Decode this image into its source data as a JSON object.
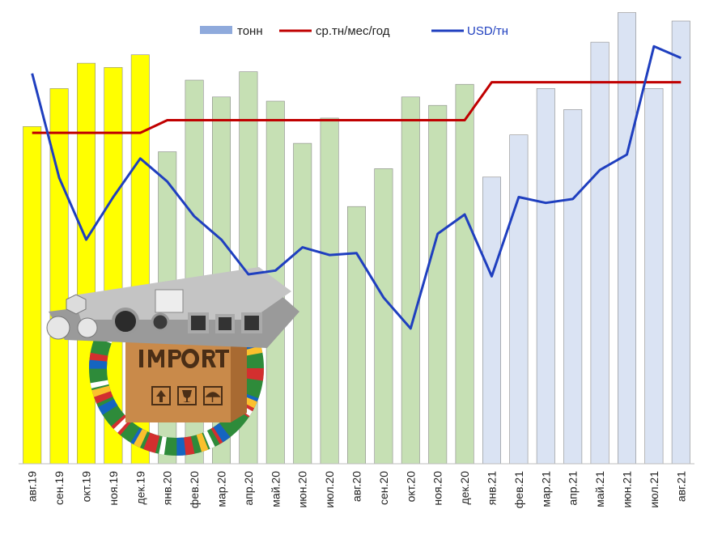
{
  "chart_data": {
    "type": "bar",
    "categories": [
      "авг.19",
      "сен.19",
      "окт.19",
      "ноя.19",
      "дек.19",
      "янв.20",
      "фев.20",
      "мар.20",
      "апр.20",
      "май.20",
      "июн.20",
      "июл.20",
      "авг.20",
      "сен.20",
      "окт.20",
      "ноя.20",
      "дек.20",
      "янв.21",
      "фев.21",
      "мар.21",
      "апр.21",
      "май.21",
      "июн.21",
      "июл.21",
      "авг.21"
    ],
    "series": [
      {
        "name": "тонн",
        "type": "bar",
        "axis": "left",
        "values": [
          80,
          89,
          95,
          94,
          97,
          74,
          91,
          87,
          93,
          86,
          76,
          82,
          61,
          70,
          87,
          85,
          90,
          68,
          78,
          89,
          84,
          100,
          107,
          89,
          105
        ]
      },
      {
        "name": "ср.тн/мес/год",
        "type": "line",
        "axis": "left",
        "values": [
          78.5,
          78.5,
          78.5,
          78.5,
          78.5,
          81.5,
          81.5,
          81.5,
          81.5,
          81.5,
          81.5,
          81.5,
          81.5,
          81.5,
          81.5,
          81.5,
          81.5,
          90.5,
          90.5,
          90.5,
          90.5,
          90.5,
          90.5,
          90.5,
          90.5
        ]
      },
      {
        "name": "USD/тн",
        "type": "line",
        "axis": "right",
        "values": [
          1310,
          1040,
          880,
          990,
          1090,
          1030,
          940,
          880,
          790,
          800,
          860,
          840,
          845,
          730,
          650,
          895,
          945,
          785,
          990,
          975,
          985,
          1060,
          1100,
          1380,
          1350
        ]
      }
    ],
    "bar_colors": [
      "#ffff00",
      "#ffff00",
      "#ffff00",
      "#ffff00",
      "#ffff00",
      "#c6e0b4",
      "#c6e0b4",
      "#c6e0b4",
      "#c6e0b4",
      "#c6e0b4",
      "#c6e0b4",
      "#c6e0b4",
      "#c6e0b4",
      "#c6e0b4",
      "#c6e0b4",
      "#c6e0b4",
      "#c6e0b4",
      "#dae3f3",
      "#dae3f3",
      "#dae3f3",
      "#dae3f3",
      "#dae3f3",
      "#dae3f3",
      "#dae3f3",
      "#dae3f3"
    ],
    "line_colors": {
      "avg": "#c00000",
      "usd": "#1f3fbf"
    },
    "legend_swatch_color": "#8faadc",
    "left_range": [
      0,
      110
    ],
    "right_range": [
      300,
      1500
    ],
    "grid": false,
    "legend_position": "top"
  }
}
